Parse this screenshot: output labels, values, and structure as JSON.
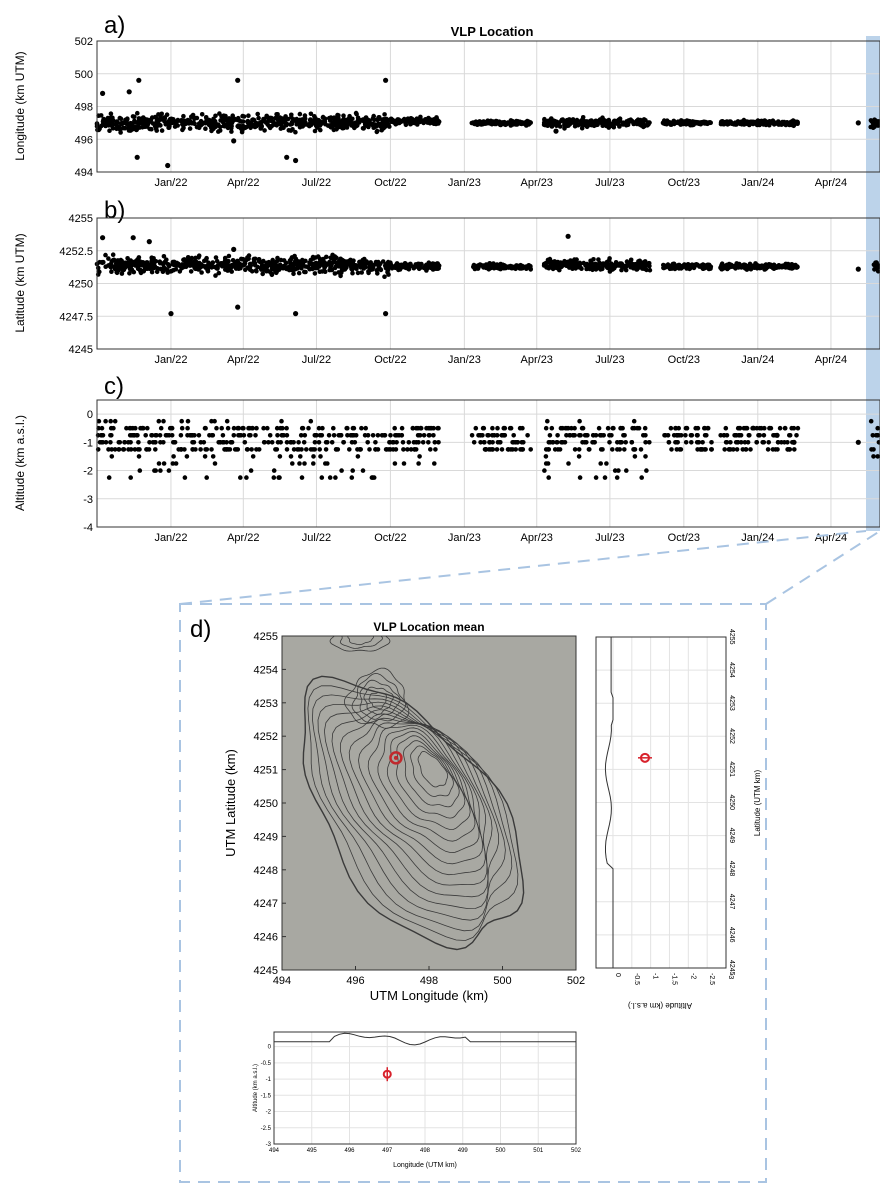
{
  "panel_labels": {
    "a": "a)",
    "b": "b)",
    "c": "c)",
    "d": "d)"
  },
  "chart_data": [
    {
      "id": "a",
      "type": "scatter",
      "title": "VLP Location",
      "xlabel": "",
      "ylabel": "Longitude (km UTM)",
      "ylim": [
        494,
        502
      ],
      "yticks": [
        494,
        496,
        498,
        500,
        502
      ],
      "ytick_labels": [
        "494",
        "496",
        "498",
        "500",
        "502"
      ],
      "xlim": [
        "2021-10-01",
        "2024-06-01"
      ],
      "x_tick_labels": [
        "Jan/22",
        "Apr/22",
        "Jul/22",
        "Oct/22",
        "Jan/23",
        "Apr/23",
        "Jul/23",
        "Oct/23",
        "Jan/24",
        "Apr/24"
      ],
      "x_ticks": [
        "2022-01-01",
        "2022-04-01",
        "2022-07-01",
        "2022-10-01",
        "2023-01-01",
        "2023-04-01",
        "2023-07-01",
        "2023-10-01",
        "2024-01-01",
        "2024-04-01"
      ],
      "grid": true,
      "marker_color": "#000000",
      "clusters": [
        {
          "from": "2021-10-01",
          "to": "2022-10-01",
          "center": 497.0,
          "spread": 0.35
        },
        {
          "from": "2022-10-01",
          "to": "2022-12-01",
          "center": 497.1,
          "spread": 0.15
        },
        {
          "from": "2023-01-10",
          "to": "2023-03-25",
          "center": 497.0,
          "spread": 0.1
        },
        {
          "from": "2023-04-10",
          "to": "2023-08-20",
          "center": 497.0,
          "spread": 0.2
        },
        {
          "from": "2023-09-05",
          "to": "2023-11-05",
          "center": 497.0,
          "spread": 0.1
        },
        {
          "from": "2023-11-15",
          "to": "2024-02-20",
          "center": 497.0,
          "spread": 0.1
        },
        {
          "from": "2024-05-20",
          "to": "2024-06-01",
          "center": 497.0,
          "spread": 0.2
        }
      ],
      "points": [
        {
          "x": "2021-10-08",
          "y": 498.8
        },
        {
          "x": "2021-11-10",
          "y": 498.9
        },
        {
          "x": "2021-11-22",
          "y": 499.6
        },
        {
          "x": "2021-11-20",
          "y": 494.9
        },
        {
          "x": "2021-12-28",
          "y": 494.4
        },
        {
          "x": "2022-03-25",
          "y": 499.6
        },
        {
          "x": "2022-03-20",
          "y": 495.9
        },
        {
          "x": "2022-05-25",
          "y": 494.9
        },
        {
          "x": "2022-06-05",
          "y": 494.7
        },
        {
          "x": "2022-09-25",
          "y": 499.6
        },
        {
          "x": "2023-04-25",
          "y": 496.5
        },
        {
          "x": "2024-01-10",
          "y": 497.1
        },
        {
          "x": "2024-02-15",
          "y": 496.9
        },
        {
          "x": "2024-05-05",
          "y": 497.0
        }
      ]
    },
    {
      "id": "b",
      "type": "scatter",
      "title": "",
      "xlabel": "",
      "ylabel": "Latitude (km UTM)",
      "ylim": [
        4245,
        4255
      ],
      "yticks": [
        4245,
        4247.5,
        4250,
        4252.5,
        4255
      ],
      "ytick_labels": [
        "4245",
        "4247.5",
        "4250",
        "4252.5",
        "4255"
      ],
      "xlim": [
        "2021-10-01",
        "2024-06-01"
      ],
      "x_tick_labels": [
        "Jan/22",
        "Apr/22",
        "Jul/22",
        "Oct/22",
        "Jan/23",
        "Apr/23",
        "Jul/23",
        "Oct/23",
        "Jan/24",
        "Apr/24"
      ],
      "x_ticks": [
        "2022-01-01",
        "2022-04-01",
        "2022-07-01",
        "2022-10-01",
        "2023-01-01",
        "2023-04-01",
        "2023-07-01",
        "2023-10-01",
        "2024-01-01",
        "2024-04-01"
      ],
      "grid": true,
      "marker_color": "#000000",
      "clusters": [
        {
          "from": "2021-10-01",
          "to": "2022-10-01",
          "center": 4251.4,
          "spread": 0.5
        },
        {
          "from": "2022-10-01",
          "to": "2022-12-01",
          "center": 4251.3,
          "spread": 0.2
        },
        {
          "from": "2023-01-10",
          "to": "2023-03-25",
          "center": 4251.3,
          "spread": 0.15
        },
        {
          "from": "2023-04-10",
          "to": "2023-08-20",
          "center": 4251.4,
          "spread": 0.3
        },
        {
          "from": "2023-09-05",
          "to": "2023-11-05",
          "center": 4251.3,
          "spread": 0.15
        },
        {
          "from": "2023-11-15",
          "to": "2024-02-20",
          "center": 4251.3,
          "spread": 0.15
        },
        {
          "from": "2024-05-20",
          "to": "2024-06-01",
          "center": 4251.3,
          "spread": 0.3
        }
      ],
      "points": [
        {
          "x": "2021-10-08",
          "y": 4253.5
        },
        {
          "x": "2021-11-15",
          "y": 4253.5
        },
        {
          "x": "2021-12-05",
          "y": 4253.2
        },
        {
          "x": "2022-01-01",
          "y": 4247.7
        },
        {
          "x": "2022-03-25",
          "y": 4248.2
        },
        {
          "x": "2022-03-20",
          "y": 4252.6
        },
        {
          "x": "2022-06-05",
          "y": 4247.7
        },
        {
          "x": "2022-09-25",
          "y": 4247.7
        },
        {
          "x": "2023-05-10",
          "y": 4253.6
        },
        {
          "x": "2024-05-05",
          "y": 4251.1
        }
      ]
    },
    {
      "id": "c",
      "type": "scatter",
      "title": "",
      "xlabel": "",
      "ylabel": "Altitude (km a.s.l.)",
      "ylim": [
        -4,
        0.5
      ],
      "yticks": [
        -4,
        -3,
        -2,
        -1,
        0
      ],
      "ytick_labels": [
        "-4",
        "-3",
        "-2",
        "-1",
        "0"
      ],
      "xlim": [
        "2021-10-01",
        "2024-06-01"
      ],
      "x_tick_labels": [
        "Jan/22",
        "Apr/22",
        "Jul/22",
        "Oct/22",
        "Jan/23",
        "Apr/23",
        "Jul/23",
        "Oct/23",
        "Jan/24",
        "Apr/24"
      ],
      "x_ticks": [
        "2022-01-01",
        "2022-04-01",
        "2022-07-01",
        "2022-10-01",
        "2023-01-01",
        "2023-04-01",
        "2023-07-01",
        "2023-10-01",
        "2024-01-01",
        "2024-04-01"
      ],
      "grid": true,
      "marker_color": "#000000",
      "altitude_levels": [
        -0.25,
        -0.5,
        -0.75,
        -1.0,
        -1.25,
        -1.5,
        -1.75,
        -2.0,
        -2.25
      ],
      "clusters": [
        {
          "from": "2021-10-01",
          "to": "2022-10-01",
          "min": -2.25,
          "max": -0.25
        },
        {
          "from": "2022-10-01",
          "to": "2022-12-01",
          "min": -1.75,
          "max": -0.5
        },
        {
          "from": "2023-01-10",
          "to": "2023-03-25",
          "min": -1.25,
          "max": -0.5
        },
        {
          "from": "2023-04-10",
          "to": "2023-08-20",
          "min": -2.25,
          "max": -0.25
        },
        {
          "from": "2023-09-05",
          "to": "2023-11-05",
          "min": -1.25,
          "max": -0.5
        },
        {
          "from": "2023-11-15",
          "to": "2024-02-20",
          "min": -1.25,
          "max": -0.5
        },
        {
          "from": "2024-05-20",
          "to": "2024-06-01",
          "min": -1.75,
          "max": -0.25
        }
      ],
      "points": [
        {
          "x": "2024-01-25",
          "y": -0.75
        },
        {
          "x": "2024-02-15",
          "y": -1.0
        },
        {
          "x": "2024-05-05",
          "y": -1.0
        }
      ]
    },
    {
      "id": "d-map",
      "type": "contour-map",
      "title": "VLP Location mean",
      "xlabel": "UTM Longitude (km)",
      "ylabel": "UTM Latitude (km)",
      "xlim": [
        494,
        502
      ],
      "ylim": [
        4245,
        4255
      ],
      "xticks": [
        "494",
        "496",
        "498",
        "500",
        "502"
      ],
      "yticks": [
        "4245",
        "4246",
        "4247",
        "4248",
        "4249",
        "4250",
        "4251",
        "4252",
        "4253",
        "4254",
        "4255"
      ],
      "background_color": "#a8a8a2",
      "marker_color": "#c0282c",
      "vlp_mean": {
        "lon": 497.1,
        "lat": 4251.35
      }
    },
    {
      "id": "d-side",
      "type": "profile",
      "xlabel": "Altitude (km a.s.l.)",
      "ylabel": "Latitude (UTM km)",
      "xticks": [
        "0",
        "-0.5",
        "-1",
        "-1.5",
        "-2",
        "-2.5",
        "-3"
      ],
      "yticks": [
        "4245",
        "4246",
        "4247",
        "4248",
        "4249",
        "4250",
        "4251",
        "4252",
        "4253",
        "4254",
        "4255"
      ],
      "marker_color": "#d8222c",
      "vlp_mean": {
        "alt": -0.85,
        "lat": 4251.35
      }
    },
    {
      "id": "d-bottom",
      "type": "profile",
      "xlabel": "Longitude (UTM km)",
      "ylabel": "Altitude (km a.s.l.)",
      "xticks": [
        "494",
        "495",
        "496",
        "497",
        "498",
        "499",
        "500",
        "501",
        "502"
      ],
      "yticks": [
        "0",
        "-0.5",
        "-1",
        "-1.5",
        "-2",
        "-2.5",
        "-3"
      ],
      "marker_color": "#d8222c",
      "vlp_mean": {
        "lon": 497.0,
        "alt": -0.85
      }
    }
  ]
}
